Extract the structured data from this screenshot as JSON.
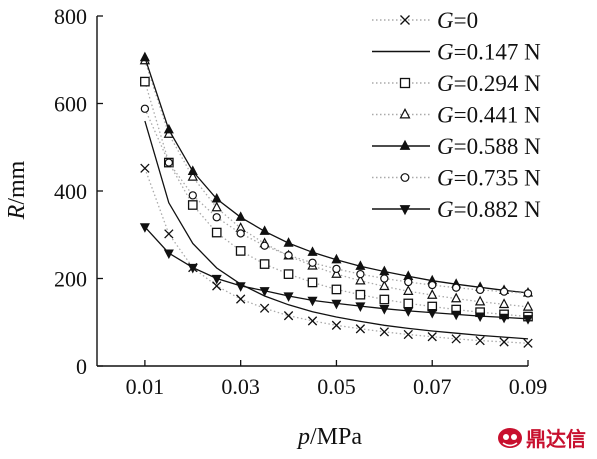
{
  "chart_data": {
    "type": "line",
    "xlabel": {
      "var": "p",
      "unit": "/MPa"
    },
    "ylabel": {
      "var": "R",
      "unit": "/mm"
    },
    "xlim": [
      0.0,
      0.09
    ],
    "ylim": [
      0,
      800
    ],
    "xticks": [
      0.01,
      0.03,
      0.05,
      0.07,
      0.09
    ],
    "xtick_labels": [
      "0.01",
      "0.03",
      "0.05",
      "0.07",
      "0.09"
    ],
    "yticks": [
      0,
      200,
      400,
      600,
      800
    ],
    "ytick_labels": [
      "0",
      "200",
      "400",
      "600",
      "800"
    ],
    "legend_position": "top-right",
    "grid": false,
    "x": [
      0.01,
      0.015,
      0.02,
      0.025,
      0.03,
      0.035,
      0.04,
      0.045,
      0.05,
      0.055,
      0.06,
      0.065,
      0.07,
      0.075,
      0.08,
      0.085,
      0.09
    ],
    "series": [
      {
        "name": "G=0",
        "var": "G",
        "value": "=0",
        "marker": "x",
        "line": "dotted",
        "color": "#aaaaaa",
        "values": [
          452,
          302,
          225,
          183,
          153,
          132,
          115,
          103,
          93,
          85,
          78,
          72,
          67,
          62,
          58,
          55,
          52
        ]
      },
      {
        "name": "G=0.147 N",
        "var": "G",
        "value": "=0.147 N",
        "marker": "none",
        "line": "solid",
        "color": "#111111",
        "values": [
          560,
          373,
          280,
          224,
          187,
          160,
          140,
          124,
          112,
          102,
          93,
          86,
          80,
          75,
          70,
          66,
          62
        ]
      },
      {
        "name": "G=0.294 N",
        "var": "G",
        "value": "=0.294 N",
        "marker": "square",
        "line": "dotted",
        "color": "#aaaaaa",
        "values": [
          650,
          465,
          368,
          305,
          263,
          233,
          210,
          191,
          175,
          163,
          152,
          143,
          136,
          129,
          123,
          118,
          113
        ]
      },
      {
        "name": "G=0.441 N",
        "var": "G",
        "value": "=0.441 N",
        "marker": "triangle-open",
        "line": "dotted",
        "color": "#aaaaaa",
        "values": [
          698,
          530,
          432,
          362,
          315,
          280,
          252,
          229,
          210,
          195,
          182,
          171,
          162,
          154,
          147,
          141,
          135
        ]
      },
      {
        "name": "G=0.588 N",
        "var": "G",
        "value": "=0.588 N",
        "marker": "triangle-filled",
        "line": "solid",
        "color": "#111111",
        "values": [
          705,
          540,
          445,
          382,
          340,
          308,
          281,
          260,
          243,
          228,
          216,
          205,
          195,
          187,
          180,
          173,
          167
        ]
      },
      {
        "name": "G=0.735 N",
        "var": "G",
        "value": "=0.735 N",
        "marker": "circle",
        "line": "dotted",
        "color": "#aaaaaa",
        "values": [
          588,
          465,
          390,
          340,
          303,
          275,
          253,
          236,
          222,
          210,
          200,
          192,
          185,
          179,
          174,
          170,
          166
        ]
      },
      {
        "name": "G=0.882 N",
        "var": "G",
        "value": "=0.882 N",
        "marker": "triangle-down-filled",
        "line": "solid",
        "color": "#111111",
        "values": [
          318,
          258,
          225,
          200,
          183,
          172,
          160,
          150,
          143,
          137,
          131,
          126,
          122,
          118,
          114,
          111,
          108
        ]
      }
    ]
  },
  "watermark": {
    "brand": "鼎达信",
    "icon": "dingdaxin-logo-icon",
    "color": "#c8102e"
  }
}
